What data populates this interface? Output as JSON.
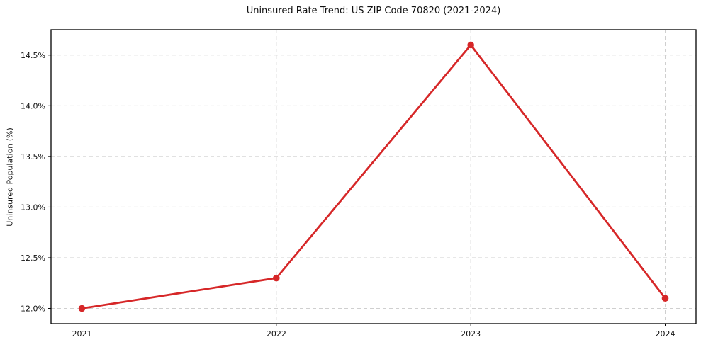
{
  "chart_data": {
    "type": "line",
    "title": "Uninsured Rate Trend: US ZIP Code 70820 (2021-2024)",
    "xlabel": "",
    "ylabel": "Uninsured Population (%)",
    "categories": [
      "2021",
      "2022",
      "2023",
      "2024"
    ],
    "values": [
      12.0,
      12.3,
      14.6,
      12.1
    ],
    "yticks": [
      12.0,
      12.5,
      13.0,
      13.5,
      14.0,
      14.5
    ],
    "ytick_labels": [
      "12.0%",
      "12.5%",
      "13.0%",
      "13.5%",
      "14.0%",
      "14.5%"
    ],
    "ylim": [
      11.85,
      14.75
    ],
    "grid": true,
    "grid_style": "dashed",
    "legend": "none",
    "line_color": "#d62728",
    "marker": "circle",
    "marker_radius": 4.8
  }
}
